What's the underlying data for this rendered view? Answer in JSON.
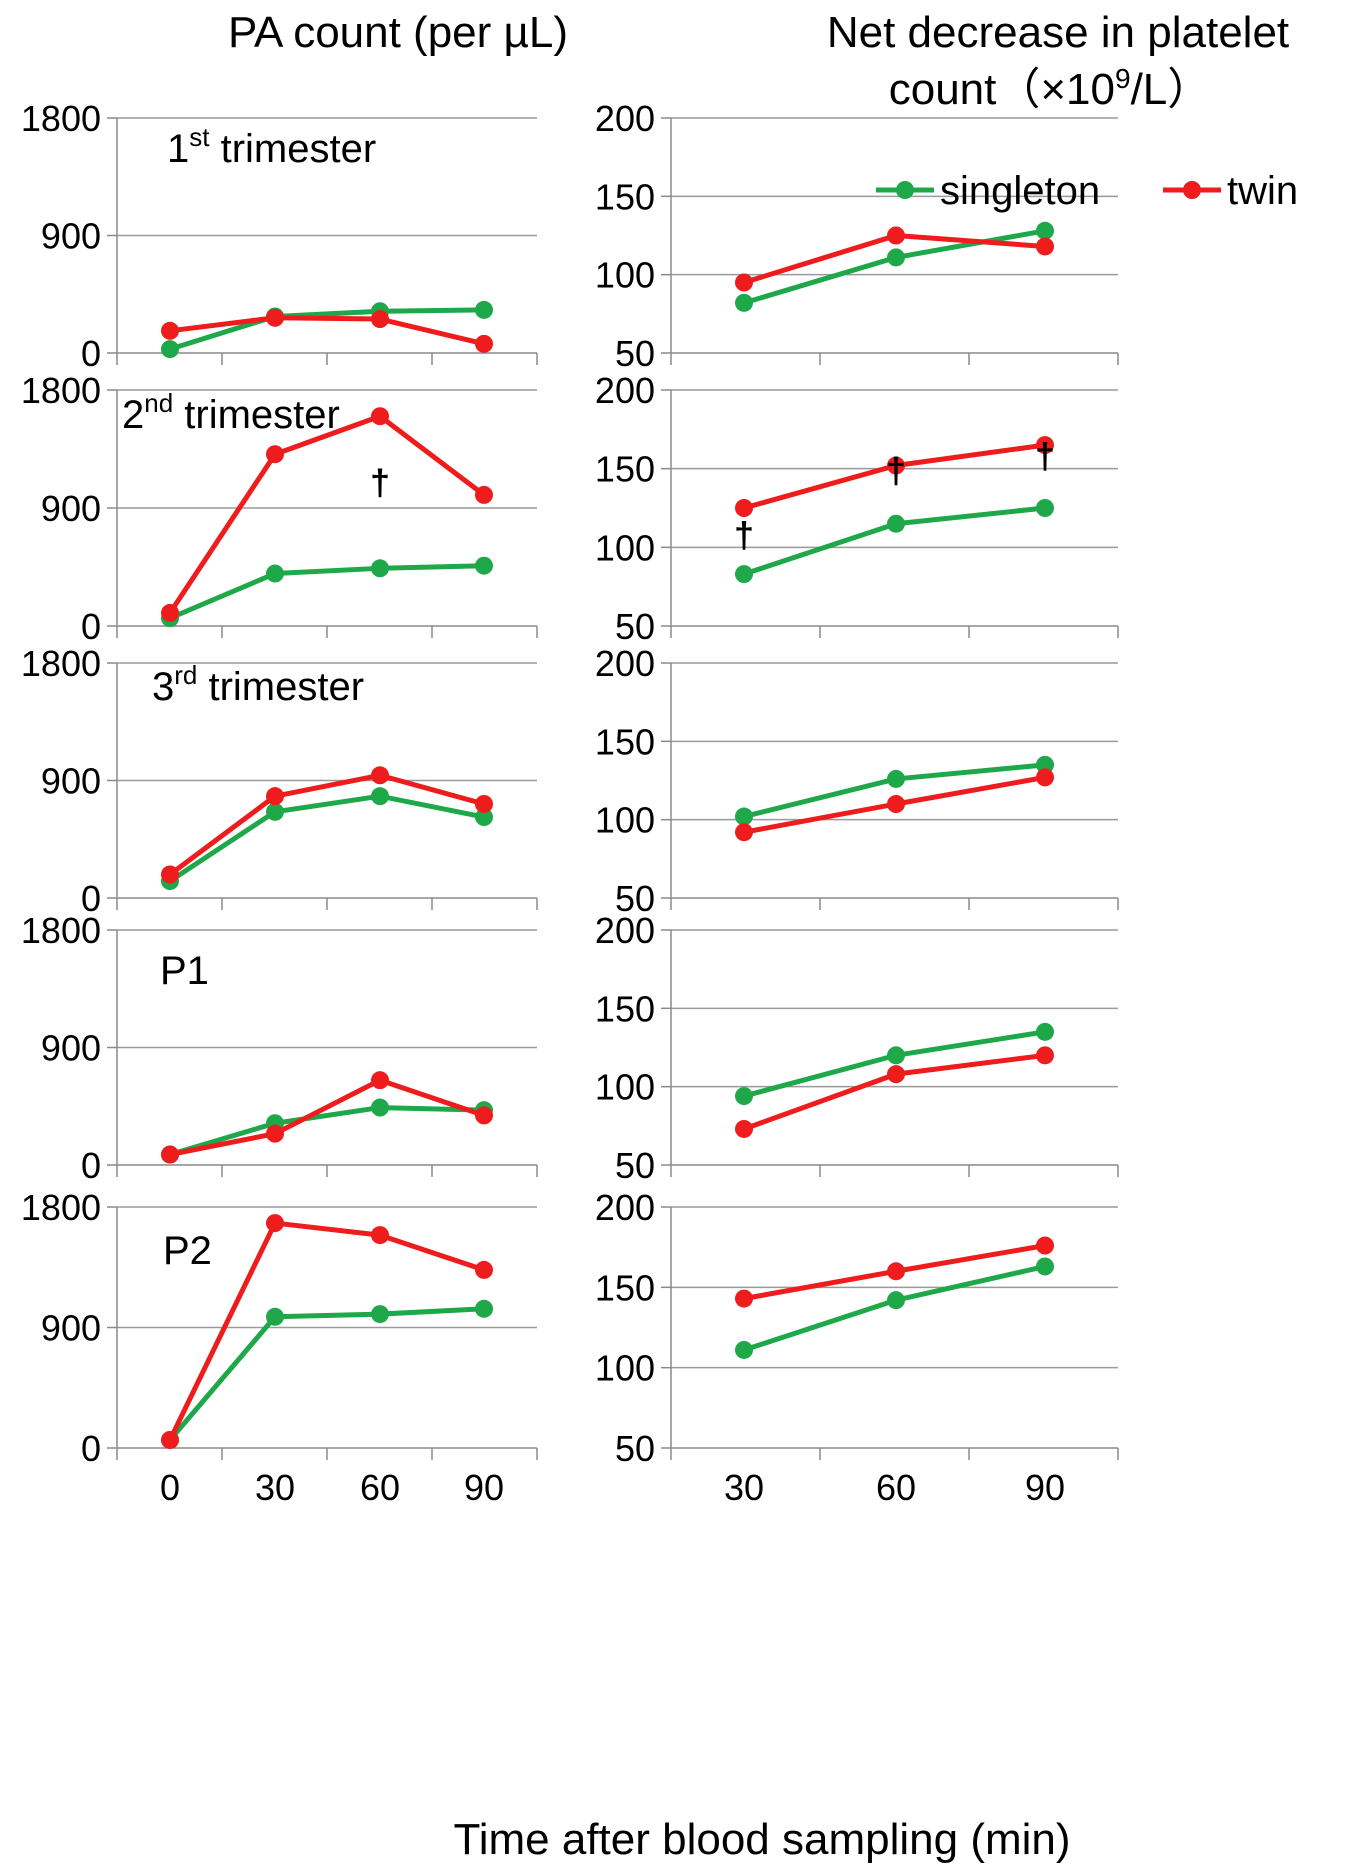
{
  "titles": {
    "left": "PA count (per µL)",
    "right_line1": "Net decrease in platelet",
    "right_line2_prefix": "count（×10",
    "right_line2_sup": "9",
    "right_line2_suffix": "/L）"
  },
  "xlabel": "Time after blood sampling (min)",
  "legend": [
    {
      "name": "singleton",
      "color": "#1fa84a"
    },
    {
      "name": "twin",
      "color": "#ee1c1c"
    }
  ],
  "chart_data": [
    {
      "type": "line",
      "panel": "1st trimester",
      "label_main": "1",
      "label_sup": "st",
      "label_rest": " trimester",
      "x": [
        0,
        30,
        60,
        90
      ],
      "ylim": [
        0,
        1800
      ],
      "yticks": [
        "0",
        "900",
        "1800"
      ],
      "xticks": [
        "0",
        "30",
        "60",
        "90"
      ],
      "series": [
        {
          "name": "singleton",
          "values": [
            30,
            280,
            320,
            330
          ]
        },
        {
          "name": "twin",
          "values": [
            170,
            270,
            260,
            70
          ]
        }
      ]
    },
    {
      "type": "line",
      "panel": "2nd trimester",
      "label_main": "2",
      "label_sup": "nd",
      "label_rest": " trimester",
      "x": [
        0,
        30,
        60,
        90
      ],
      "ylim": [
        0,
        1800
      ],
      "yticks": [
        "0",
        "900",
        "1800"
      ],
      "xticks": [
        "0",
        "30",
        "60",
        "90"
      ],
      "series": [
        {
          "name": "singleton",
          "values": [
            60,
            400,
            440,
            460
          ]
        },
        {
          "name": "twin",
          "values": [
            100,
            1310,
            1600,
            1000
          ]
        }
      ],
      "annotations": [
        {
          "text": "†",
          "x": 60,
          "y": 1000
        }
      ]
    },
    {
      "type": "line",
      "panel": "3rd trimester",
      "label_main": "3",
      "label_sup": "rd",
      "label_rest": " trimester",
      "x": [
        0,
        30,
        60,
        90
      ],
      "ylim": [
        0,
        1800
      ],
      "yticks": [
        "0",
        "900",
        "1800"
      ],
      "xticks": [
        "0",
        "30",
        "60",
        "90"
      ],
      "series": [
        {
          "name": "singleton",
          "values": [
            130,
            660,
            780,
            620
          ]
        },
        {
          "name": "twin",
          "values": [
            180,
            780,
            940,
            720
          ]
        }
      ]
    },
    {
      "type": "line",
      "panel": "P1",
      "label_main": "P1",
      "label_sup": "",
      "label_rest": "",
      "x": [
        0,
        30,
        60,
        90
      ],
      "ylim": [
        0,
        1800
      ],
      "yticks": [
        "0",
        "900",
        "1800"
      ],
      "xticks": [
        "0",
        "30",
        "60",
        "90"
      ],
      "series": [
        {
          "name": "singleton",
          "values": [
            80,
            320,
            440,
            420
          ]
        },
        {
          "name": "twin",
          "values": [
            80,
            240,
            650,
            380
          ]
        }
      ]
    },
    {
      "type": "line",
      "panel": "P2",
      "label_main": "P2",
      "label_sup": "",
      "label_rest": "",
      "x": [
        0,
        30,
        60,
        90
      ],
      "ylim": [
        0,
        1800
      ],
      "yticks": [
        "0",
        "900",
        "1800"
      ],
      "xticks": [
        "0",
        "30",
        "60",
        "90"
      ],
      "series": [
        {
          "name": "singleton",
          "values": [
            60,
            980,
            1000,
            1040
          ]
        },
        {
          "name": "twin",
          "values": [
            60,
            1680,
            1590,
            1330
          ]
        }
      ]
    },
    {
      "type": "line",
      "panel": "1st trimester (net decrease)",
      "x": [
        30,
        60,
        90
      ],
      "ylim": [
        50,
        200
      ],
      "yticks": [
        "50",
        "100",
        "150",
        "200"
      ],
      "xticks": [
        "30",
        "60",
        "90"
      ],
      "series": [
        {
          "name": "singleton",
          "values": [
            82,
            111,
            128
          ]
        },
        {
          "name": "twin",
          "values": [
            95,
            125,
            118
          ]
        }
      ]
    },
    {
      "type": "line",
      "panel": "2nd trimester (net decrease)",
      "x": [
        30,
        60,
        90
      ],
      "ylim": [
        50,
        200
      ],
      "yticks": [
        "50",
        "100",
        "150",
        "200"
      ],
      "xticks": [
        "30",
        "60",
        "90"
      ],
      "series": [
        {
          "name": "singleton",
          "values": [
            83,
            115,
            125
          ]
        },
        {
          "name": "twin",
          "values": [
            125,
            152,
            165
          ]
        }
      ],
      "annotations": [
        {
          "text": "†",
          "x": 30,
          "y": 100
        },
        {
          "text": "†",
          "x": 60,
          "y": 141
        },
        {
          "text": "†",
          "x": 90,
          "y": 150
        }
      ]
    },
    {
      "type": "line",
      "panel": "3rd trimester (net decrease)",
      "x": [
        30,
        60,
        90
      ],
      "ylim": [
        50,
        200
      ],
      "yticks": [
        "50",
        "100",
        "150",
        "200"
      ],
      "xticks": [
        "30",
        "60",
        "90"
      ],
      "series": [
        {
          "name": "singleton",
          "values": [
            102,
            126,
            135
          ]
        },
        {
          "name": "twin",
          "values": [
            92,
            110,
            127
          ]
        }
      ]
    },
    {
      "type": "line",
      "panel": "P1 (net decrease)",
      "x": [
        30,
        60,
        90
      ],
      "ylim": [
        50,
        200
      ],
      "yticks": [
        "50",
        "100",
        "150",
        "200"
      ],
      "xticks": [
        "30",
        "60",
        "90"
      ],
      "series": [
        {
          "name": "singleton",
          "values": [
            94,
            120,
            135
          ]
        },
        {
          "name": "twin",
          "values": [
            73,
            108,
            120
          ]
        }
      ]
    },
    {
      "type": "line",
      "panel": "P2 (net decrease)",
      "x": [
        30,
        60,
        90
      ],
      "ylim": [
        50,
        200
      ],
      "yticks": [
        "50",
        "100",
        "150",
        "200"
      ],
      "xticks": [
        "30",
        "60",
        "90"
      ],
      "series": [
        {
          "name": "singleton",
          "values": [
            111,
            142,
            163
          ]
        },
        {
          "name": "twin",
          "values": [
            143,
            160,
            176
          ]
        }
      ]
    }
  ]
}
